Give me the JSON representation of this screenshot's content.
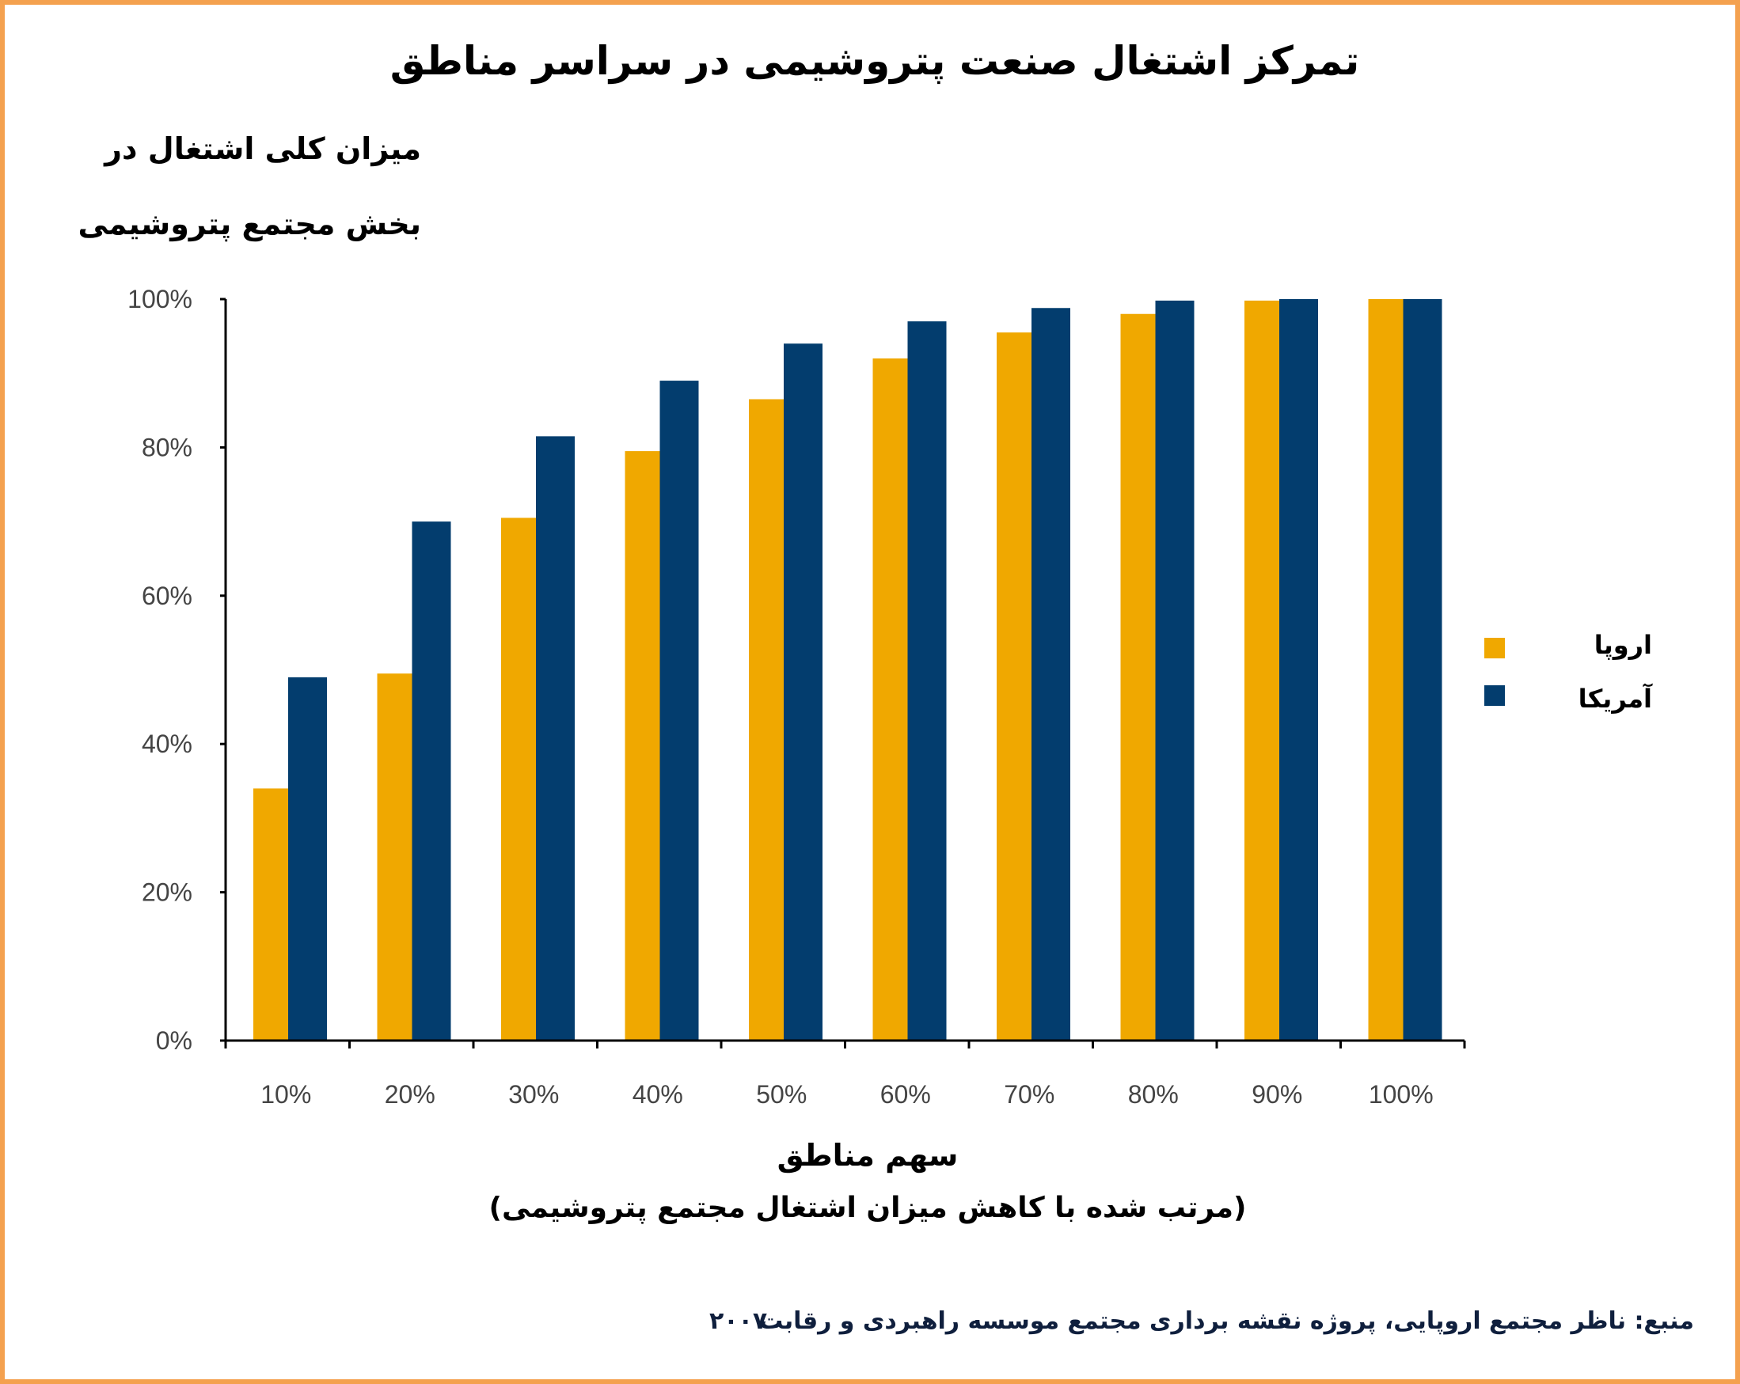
{
  "chart_data": {
    "type": "bar",
    "title": "تمرکز اشتغال صنعت پتروشیمی در سراسر مناطق",
    "ylabel_lines": [
      "میزان کلی اشتغال در",
      "بخش مجتمع پتروشیمی"
    ],
    "xlabel": "سهم مناطق",
    "xlabel_sub": "(مرتب شده با کاهش میزان اشتغال مجتمع پتروشیمی)",
    "categories": [
      "10%",
      "20%",
      "30%",
      "40%",
      "50%",
      "60%",
      "70%",
      "80%",
      "90%",
      "100%"
    ],
    "yticks": [
      "0%",
      "20%",
      "40%",
      "60%",
      "80%",
      "100%"
    ],
    "ylim": [
      0,
      100
    ],
    "grid": false,
    "legend_position": "right",
    "series": [
      {
        "name": "اروپا",
        "color": "#f0a800",
        "values": [
          34,
          49.5,
          70.5,
          79.5,
          86.5,
          92,
          95.5,
          98,
          99.8,
          100
        ]
      },
      {
        "name": "آمریکا",
        "color": "#033d6e",
        "values": [
          49,
          70,
          81.5,
          89,
          94,
          97,
          98.8,
          99.8,
          100,
          100
        ]
      }
    ]
  },
  "footer": {
    "source": "منبع: ناظر مجتمع اروپایی، پروژه نقشه برداری مجتمع موسسه راهبردی و رقابت",
    "year": "۲۰۰۷"
  }
}
